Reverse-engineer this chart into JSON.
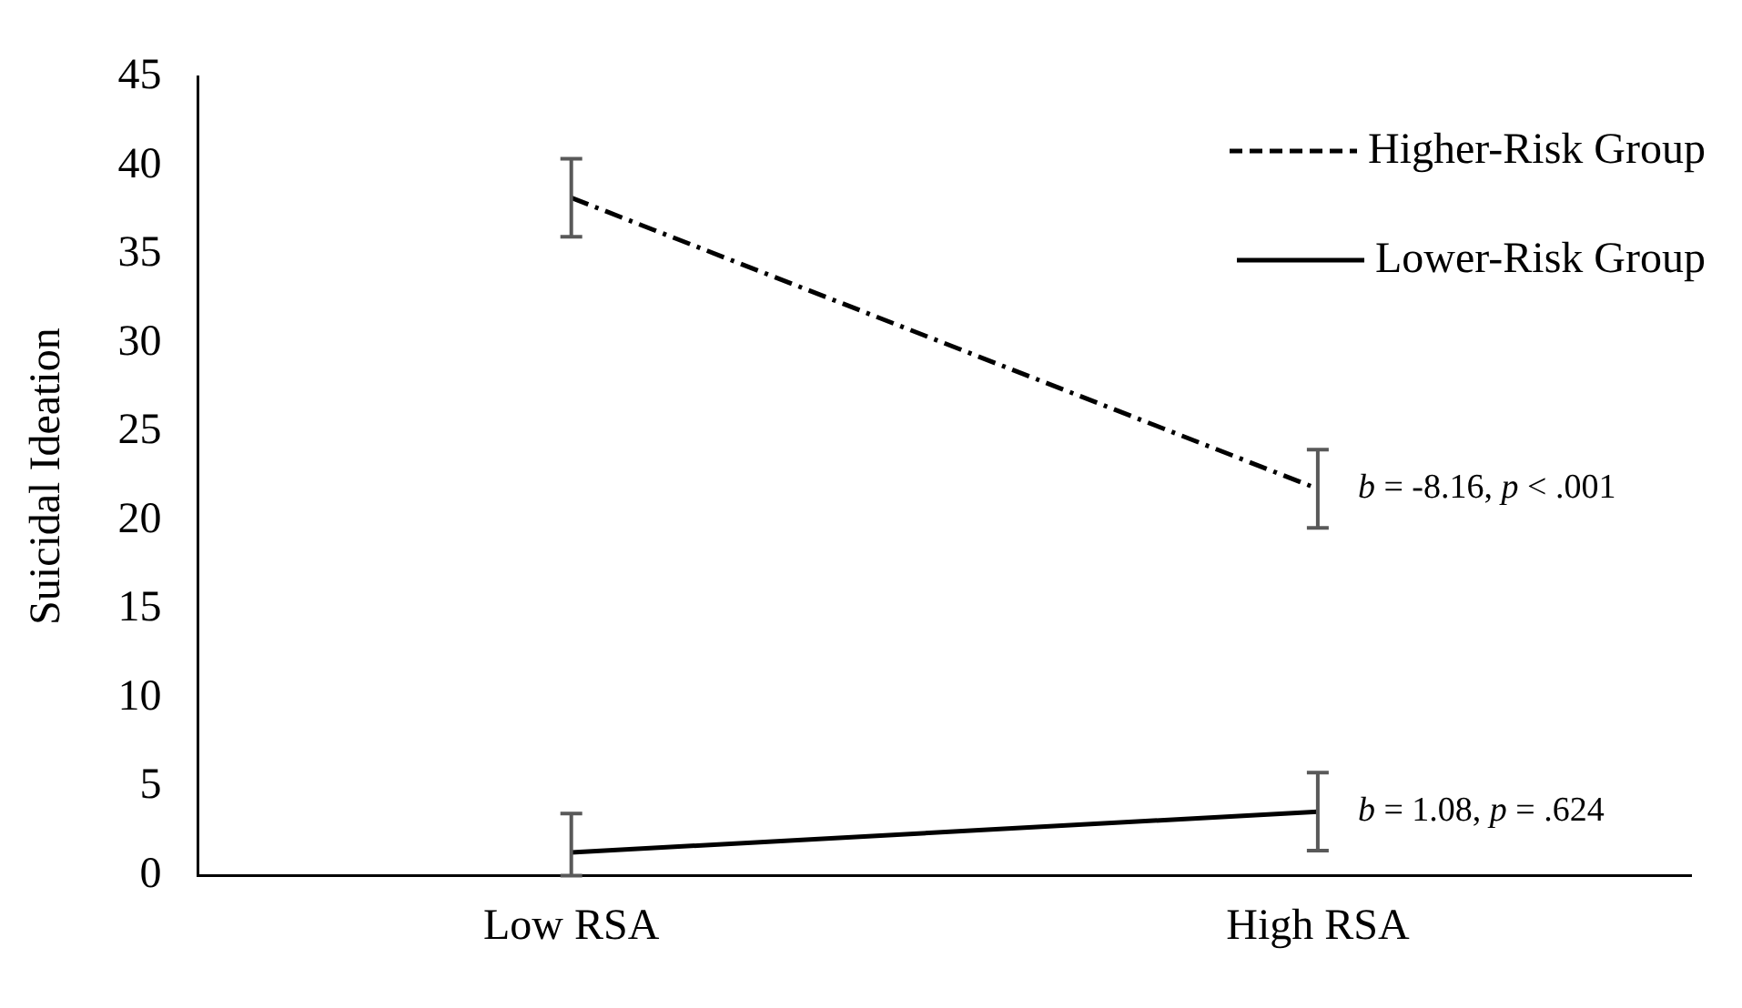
{
  "chart_data": {
    "type": "line",
    "ylabel": "Suicidal Ideation",
    "categories": [
      "Low RSA",
      "High RSA"
    ],
    "series": [
      {
        "name": "Higher-Risk Group",
        "color": "#000000",
        "values": [
          38.2,
          21.8
        ],
        "errors": [
          2.2,
          2.2
        ],
        "line_style": "dashed"
      },
      {
        "name": "Lower-Risk Group",
        "color": "#000000",
        "values": [
          1.3,
          3.6
        ],
        "errors": [
          [
            0,
            3.5
          ],
          2.2
        ],
        "line_style": "solid"
      }
    ],
    "ylim": [
      0,
      45
    ],
    "yticks": [
      0,
      5,
      10,
      15,
      20,
      25,
      30,
      35,
      40,
      45
    ],
    "grid": false,
    "legend": "top right",
    "marker": "none",
    "annotations": [
      {
        "text": "b = -8.16, p < .001",
        "x": "High RSA",
        "y": 21.8
      },
      {
        "text": "b = 1.08, p = .624",
        "x": "High RSA",
        "y": 3.6
      }
    ]
  }
}
